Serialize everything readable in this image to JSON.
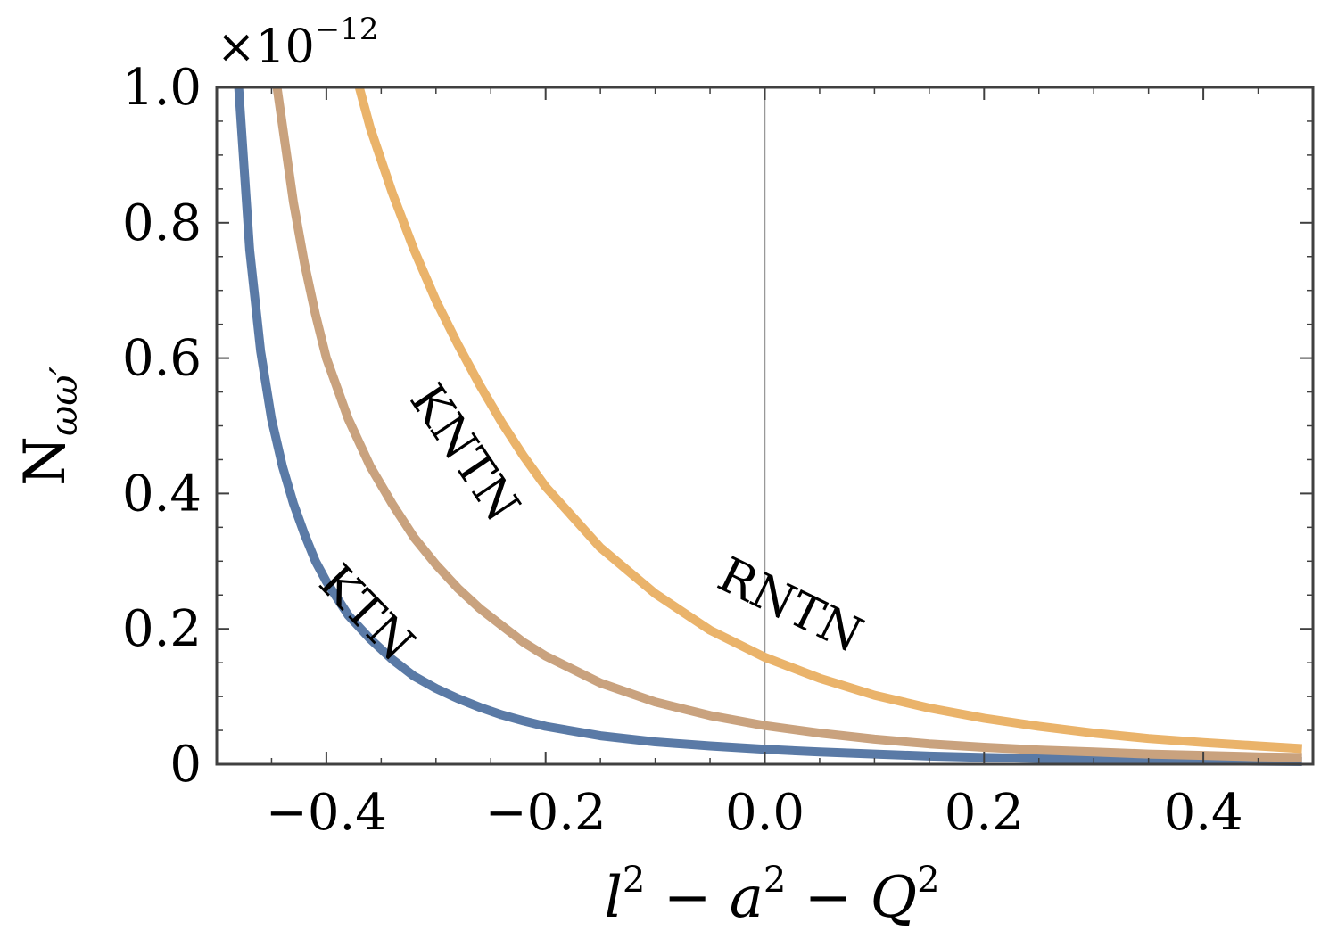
{
  "chart_data": {
    "type": "line",
    "scale_note": "×10",
    "scale_exponent": "−12",
    "xlabel": {
      "parts": [
        {
          "t": "l",
          "italic": true
        },
        {
          "t": "2",
          "sup": true
        },
        {
          "t": " − "
        },
        {
          "t": "a",
          "italic": true
        },
        {
          "t": "2",
          "sup": true
        },
        {
          "t": " − "
        },
        {
          "t": "Q",
          "italic": true
        },
        {
          "t": "2",
          "sup": true
        }
      ]
    },
    "ylabel": {
      "main": "N",
      "sub": "ωω′"
    },
    "xlim": [
      -0.5,
      0.5
    ],
    "ylim": [
      0,
      1.0
    ],
    "x_ticks": [
      -0.4,
      -0.2,
      0.0,
      0.2,
      0.4
    ],
    "x_tick_labels": [
      "−0.4",
      "−0.2",
      "0.0",
      "0.2",
      "0.4"
    ],
    "y_ticks": [
      0,
      0.2,
      0.4,
      0.6,
      0.8,
      1.0
    ],
    "y_tick_labels": [
      "0",
      "0.2",
      "0.4",
      "0.6",
      "0.8",
      "1.0"
    ],
    "reference_line_x": 0.0,
    "series": [
      {
        "name": "KTN",
        "color": "#5a7aa6",
        "x": [
          -0.48,
          -0.47,
          -0.46,
          -0.45,
          -0.44,
          -0.43,
          -0.42,
          -0.41,
          -0.4,
          -0.38,
          -0.36,
          -0.34,
          -0.32,
          -0.3,
          -0.28,
          -0.26,
          -0.24,
          -0.22,
          -0.2,
          -0.15,
          -0.1,
          -0.05,
          0.0,
          0.05,
          0.1,
          0.15,
          0.2,
          0.25,
          0.3,
          0.35,
          0.4,
          0.45,
          0.49
        ],
        "y": [
          1.0,
          0.76,
          0.61,
          0.51,
          0.44,
          0.385,
          0.34,
          0.3,
          0.27,
          0.22,
          0.185,
          0.155,
          0.13,
          0.112,
          0.097,
          0.084,
          0.073,
          0.064,
          0.056,
          0.042,
          0.033,
          0.027,
          0.022,
          0.018,
          0.015,
          0.012,
          0.01,
          0.0085,
          0.007,
          0.006,
          0.005,
          0.0045,
          0.004
        ]
      },
      {
        "name": "KNTN",
        "color": "#c9a27e",
        "x": [
          -0.445,
          -0.43,
          -0.42,
          -0.41,
          -0.4,
          -0.38,
          -0.36,
          -0.34,
          -0.32,
          -0.3,
          -0.28,
          -0.26,
          -0.24,
          -0.22,
          -0.2,
          -0.15,
          -0.1,
          -0.05,
          0.0,
          0.05,
          0.1,
          0.15,
          0.2,
          0.25,
          0.3,
          0.35,
          0.4,
          0.45,
          0.49
        ],
        "y": [
          1.0,
          0.83,
          0.74,
          0.665,
          0.6,
          0.51,
          0.44,
          0.385,
          0.335,
          0.295,
          0.26,
          0.23,
          0.205,
          0.18,
          0.16,
          0.12,
          0.092,
          0.072,
          0.057,
          0.046,
          0.037,
          0.03,
          0.025,
          0.021,
          0.018,
          0.015,
          0.013,
          0.011,
          0.01
        ]
      },
      {
        "name": "RNTN",
        "color": "#eab36a",
        "x": [
          -0.37,
          -0.36,
          -0.34,
          -0.32,
          -0.3,
          -0.28,
          -0.26,
          -0.24,
          -0.22,
          -0.2,
          -0.15,
          -0.1,
          -0.05,
          0.0,
          0.05,
          0.1,
          0.15,
          0.2,
          0.25,
          0.3,
          0.35,
          0.4,
          0.45,
          0.49
        ],
        "y": [
          1.0,
          0.94,
          0.845,
          0.76,
          0.685,
          0.62,
          0.56,
          0.505,
          0.455,
          0.41,
          0.32,
          0.252,
          0.198,
          0.158,
          0.127,
          0.102,
          0.083,
          0.068,
          0.056,
          0.046,
          0.038,
          0.032,
          0.027,
          0.023
        ]
      }
    ],
    "annotations": [
      {
        "text": "KTN",
        "series": "KTN"
      },
      {
        "text": "KNTN",
        "series": "KNTN"
      },
      {
        "text": "RNTN",
        "series": "RNTN"
      }
    ],
    "grid": false,
    "legend": "none"
  }
}
